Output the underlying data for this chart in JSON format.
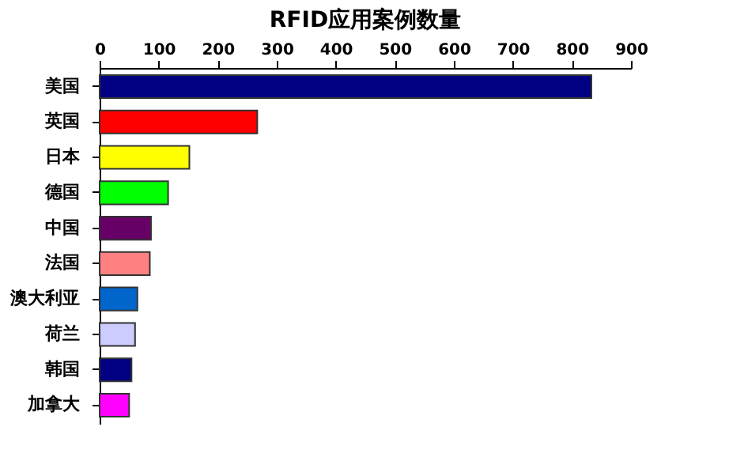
{
  "chart_data": {
    "type": "bar",
    "orientation": "horizontal",
    "title": "RFID应用案例数量",
    "categories": [
      "美国",
      "英国",
      "日本",
      "德国",
      "中国",
      "法国",
      "澳大利亚",
      "荷兰",
      "韩国",
      "加拿大"
    ],
    "values": [
      833,
      267,
      152,
      116,
      87,
      85,
      64,
      60,
      54,
      50
    ],
    "colors": [
      "#000080",
      "#ff0000",
      "#ffff00",
      "#00ff00",
      "#660066",
      "#ff8080",
      "#0066cc",
      "#ccccff",
      "#000080",
      "#ff00ff"
    ],
    "xlim": [
      0,
      900
    ],
    "xticks": [
      0,
      100,
      200,
      300,
      400,
      500,
      600,
      700,
      800,
      900
    ],
    "grid": false
  }
}
